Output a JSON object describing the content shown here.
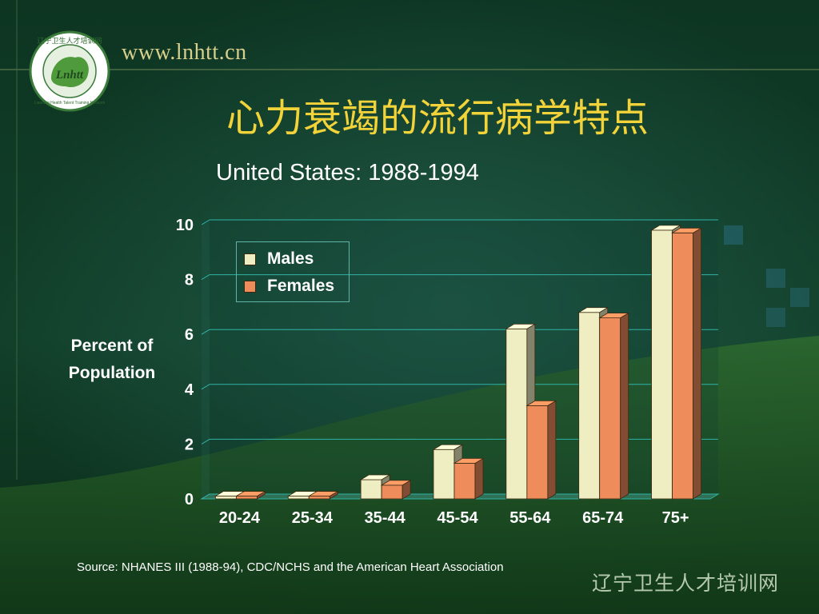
{
  "header": {
    "site_url": "www.lnhtt.cn",
    "logo_ring_text": "辽宁卫生人才培训网",
    "logo_center_text": "Lnhtt",
    "logo_english_text": "Liaoning Health Talent Training Network"
  },
  "slide": {
    "title": "心力衰竭的流行病学特点",
    "subtitle": "United States:  1988-1994",
    "source": "Source:  NHANES III (1988-94), CDC/NCHS and the American Heart Association",
    "footer_brand": "辽宁卫生人才培训网"
  },
  "colors": {
    "males": "#efeec2",
    "females": "#ef8c5c",
    "grid": "#2fb3a6",
    "title": "#f2d33a"
  },
  "chart_data": {
    "type": "bar",
    "title": "United States:  1988-1994",
    "ylabel_lines": [
      "Percent of",
      "Population"
    ],
    "xlabel": "",
    "categories": [
      "20-24",
      "25-34",
      "35-44",
      "45-54",
      "55-64",
      "65-74",
      "75+"
    ],
    "series": [
      {
        "name": "Males",
        "values": [
          0.1,
          0.1,
          0.7,
          1.8,
          6.2,
          6.8,
          9.8
        ]
      },
      {
        "name": "Females",
        "values": [
          0.1,
          0.1,
          0.5,
          1.3,
          3.4,
          6.6,
          9.7
        ]
      }
    ],
    "ylim": [
      0,
      10
    ],
    "yticks": [
      "0",
      "2",
      "4",
      "6",
      "8",
      "10"
    ],
    "grid": true,
    "legend_position": "top-left",
    "style": "3d"
  }
}
